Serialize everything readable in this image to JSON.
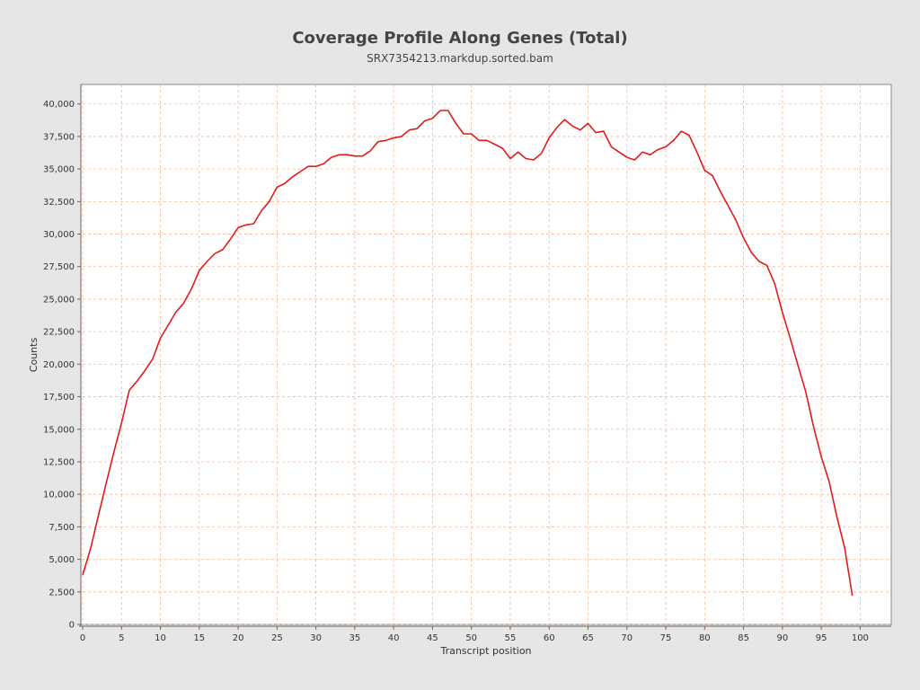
{
  "chart_data": {
    "type": "line",
    "title": "Coverage Profile Along Genes (Total)",
    "subtitle": "SRX7354213.markdup.sorted.bam",
    "xlabel": "Transcript position",
    "ylabel": "Counts",
    "xlim": [
      0,
      104
    ],
    "ylim": [
      0,
      41500
    ],
    "x_ticks": [
      0,
      5,
      10,
      15,
      20,
      25,
      30,
      35,
      40,
      45,
      50,
      55,
      60,
      65,
      70,
      75,
      80,
      85,
      90,
      95,
      100
    ],
    "y_ticks": [
      0,
      2500,
      5000,
      7500,
      10000,
      12500,
      15000,
      17500,
      20000,
      22500,
      25000,
      27500,
      30000,
      32500,
      35000,
      37500,
      40000
    ],
    "y_tick_labels": [
      "0",
      "2,500",
      "5,000",
      "7,500",
      "10,000",
      "12,500",
      "15,000",
      "17,500",
      "20,000",
      "22,500",
      "25,000",
      "27,500",
      "30,000",
      "32,500",
      "35,000",
      "37,500",
      "40,000"
    ],
    "grid": true,
    "line_color": "#e31a1c",
    "grid_color": "#f0b89a",
    "plot_background": "#ffffff",
    "series": [
      {
        "x": [
          0,
          1,
          2,
          3,
          4,
          5,
          6,
          7,
          8,
          9,
          10,
          11,
          12,
          13,
          14,
          15,
          16,
          17,
          18,
          19,
          20,
          21,
          22,
          23,
          24,
          25,
          26,
          27,
          28,
          29,
          30,
          31,
          32,
          33,
          34,
          35,
          36,
          37,
          38,
          39,
          40,
          41,
          42,
          43,
          44,
          45,
          46,
          47,
          48,
          49,
          50,
          51,
          52,
          53,
          54,
          55,
          56,
          57,
          58,
          59,
          60,
          61,
          62,
          63,
          64,
          65,
          66,
          67,
          68,
          69,
          70,
          71,
          72,
          73,
          74,
          75,
          76,
          77,
          78,
          79,
          80,
          81,
          82,
          83,
          84,
          85,
          86,
          87,
          88,
          89,
          90,
          91,
          92,
          93,
          94,
          95,
          96,
          97,
          98,
          99
        ],
        "values": [
          3800,
          5800,
          8300,
          10800,
          13200,
          15500,
          18000,
          18700,
          19500,
          20400,
          22000,
          23000,
          24000,
          24700,
          25800,
          27200,
          27900,
          28500,
          28800,
          29600,
          30500,
          30700,
          30800,
          31800,
          32500,
          33600,
          33900,
          34400,
          34800,
          35200,
          35200,
          35400,
          35900,
          36100,
          36100,
          36000,
          36000,
          36400,
          37100,
          37200,
          37400,
          37500,
          38000,
          38100,
          38700,
          38900,
          39500,
          39500,
          38500,
          37700,
          37700,
          37200,
          37200,
          36900,
          36600,
          35800,
          36300,
          35800,
          35700,
          36200,
          37400,
          38200,
          38800,
          38300,
          38000,
          38500,
          37800,
          37900,
          36700,
          36300,
          35900,
          35700,
          36300,
          36100,
          36500,
          36700,
          37200,
          37900,
          37600,
          36300,
          34900,
          34500,
          33300,
          32200,
          31100,
          29700,
          28600,
          27900,
          27600,
          26200,
          24000,
          22000,
          19900,
          17900,
          15200,
          12900,
          11000,
          8300,
          5900,
          2200
        ]
      }
    ]
  }
}
